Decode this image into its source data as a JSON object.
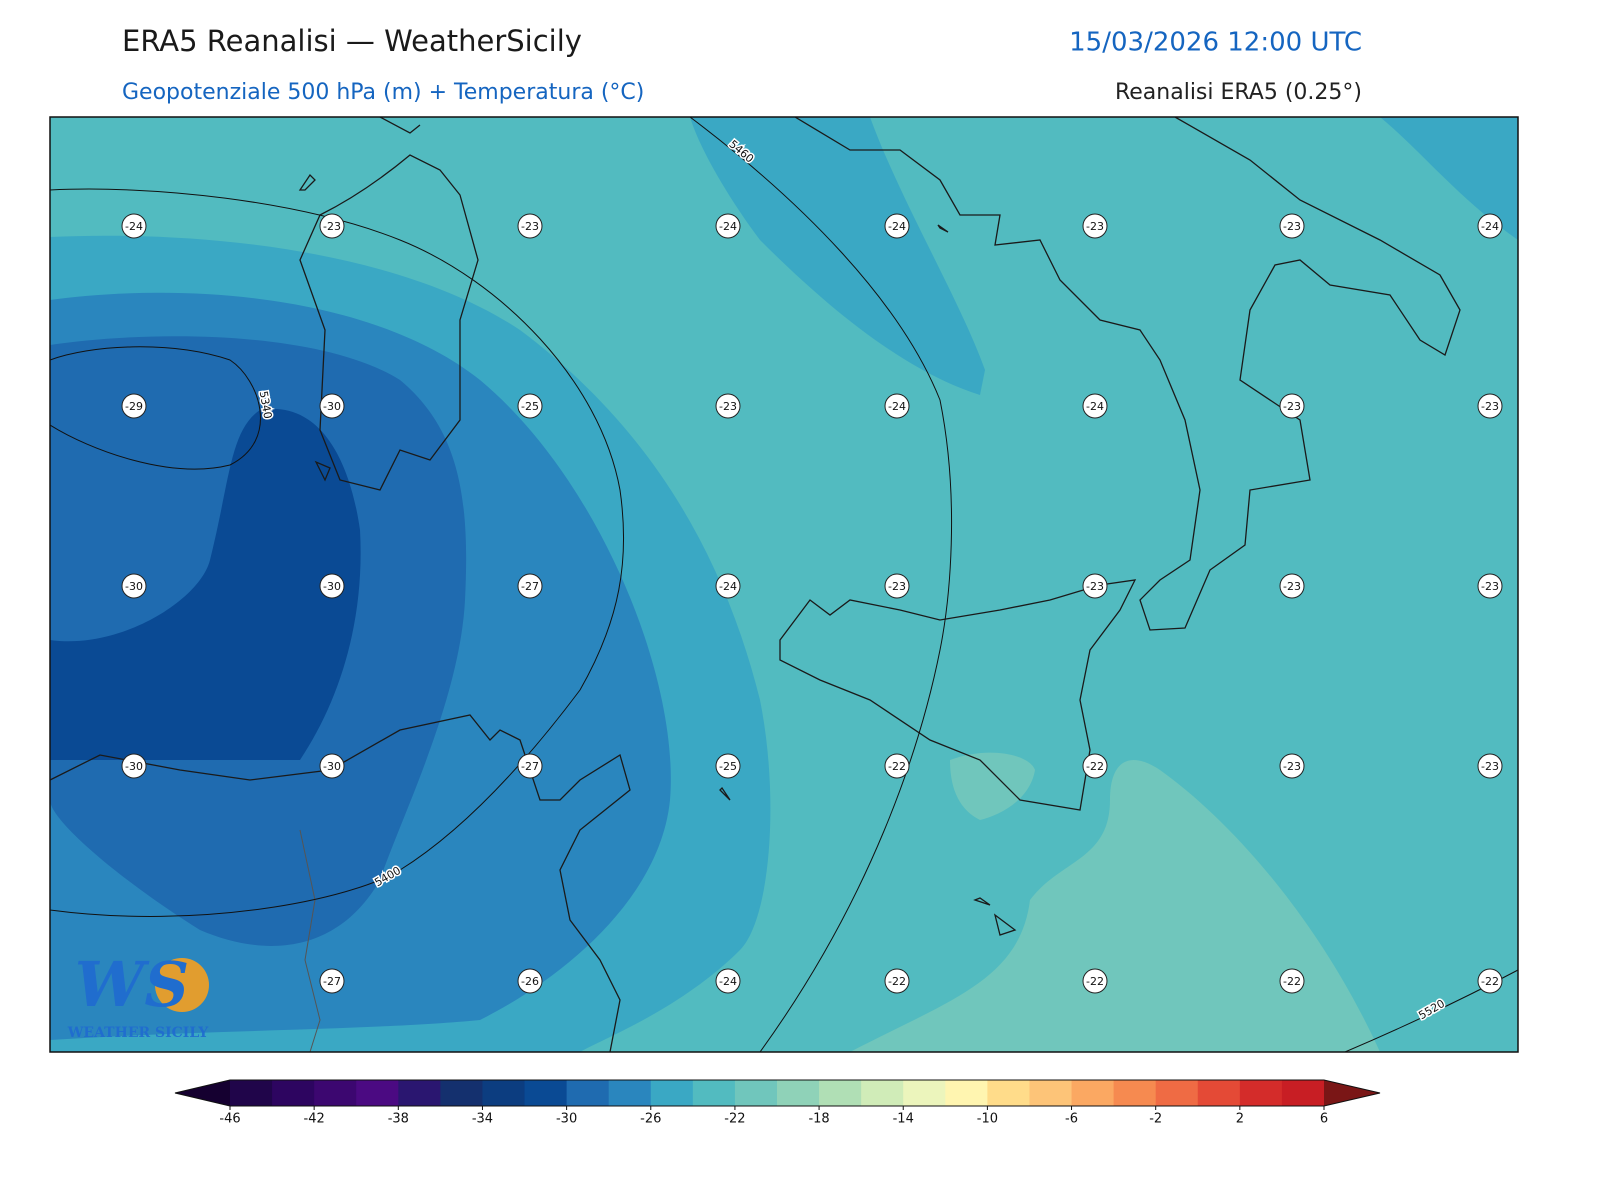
{
  "header": {
    "title": "ERA5 Reanalisi — WeatherSicily",
    "date": "15/03/2026 12:00 UTC",
    "subtitle": "Geopotenziale 500 hPa (m) + Temperatura (°C)",
    "source": "Reanalisi ERA5 (0.25°)"
  },
  "map": {
    "temperature_rows": [
      [
        -24,
        -23,
        -23,
        -24,
        -24,
        -23,
        -23,
        -24
      ],
      [
        -29,
        -30,
        -25,
        -23,
        -24,
        -24,
        -23,
        -23
      ],
      [
        -30,
        -30,
        -27,
        -24,
        -23,
        -23,
        -23,
        -23
      ],
      [
        -30,
        -30,
        -27,
        -25,
        -22,
        -22,
        -23,
        -23
      ],
      [
        null,
        -27,
        -26,
        -24,
        -22,
        -22,
        -22,
        -22
      ]
    ],
    "contour_labels": [
      "5460",
      "5340",
      "5400",
      "5520"
    ]
  },
  "colorbar": {
    "range": [
      -46,
      6
    ],
    "ticks": [
      -46,
      -42,
      -38,
      -34,
      -30,
      -26,
      -22,
      -18,
      -14,
      -10,
      -6,
      -2,
      2,
      6
    ],
    "colors": [
      "#20054a",
      "#2d0560",
      "#3c0770",
      "#4b0a82",
      "#2a1670",
      "#14306e",
      "#0c3d80",
      "#0a4a94",
      "#1f6bb0",
      "#2a86be",
      "#3aa8c4",
      "#52bbc0",
      "#70c6bc",
      "#8fd2b8",
      "#b0dfb5",
      "#d0ecb8",
      "#ecf5bc",
      "#fff5b0",
      "#ffdc8a",
      "#fdc478",
      "#fba862",
      "#f68a50",
      "#ef6b44",
      "#e44a36",
      "#d42c2a",
      "#c81e24"
    ],
    "extend_colors": [
      "#150030",
      "#7a1616"
    ]
  },
  "logo": {
    "initials": "WS",
    "name": "WEATHER SICILY"
  }
}
